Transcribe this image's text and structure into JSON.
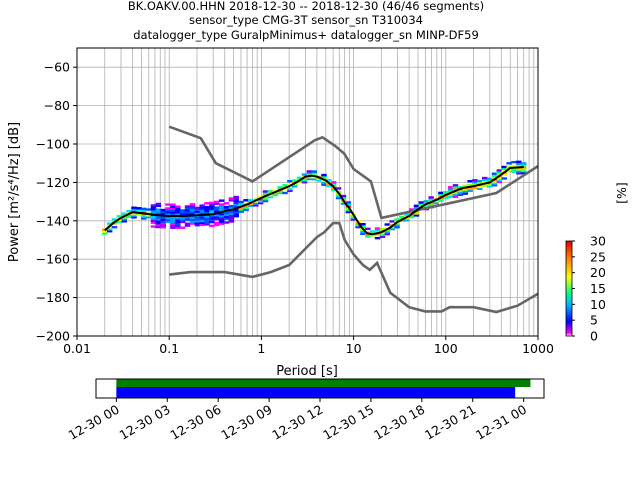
{
  "chart_data": {
    "type": "heatmap",
    "title_lines": [
      "BK.OAKV.00.HHN   2018-12-30 -- 2018-12-30  (46/46 segments)",
      "sensor_type CMG-3T sensor_sn T310034",
      "datalogger_type GuralpMinimus+ datalogger_sn MINP-DF59"
    ],
    "xlabel": "Period [s]",
    "ylabel": "Power [m²/s⁴/Hz] [dB]",
    "x_scale": "log",
    "xlim": [
      0.01,
      1000
    ],
    "ylim": [
      -200,
      -50
    ],
    "x_ticks": [
      {
        "value": 0.01,
        "label": "0.01"
      },
      {
        "value": 0.1,
        "label": "0.1"
      },
      {
        "value": 1,
        "label": "1"
      },
      {
        "value": 10,
        "label": "10"
      },
      {
        "value": 100,
        "label": "100"
      },
      {
        "value": 1000,
        "label": "1000"
      }
    ],
    "y_ticks": [
      {
        "value": -60,
        "label": "−60"
      },
      {
        "value": -80,
        "label": "−80"
      },
      {
        "value": -100,
        "label": "−100"
      },
      {
        "value": -120,
        "label": "−120"
      },
      {
        "value": -140,
        "label": "−140"
      },
      {
        "value": -160,
        "label": "−160"
      },
      {
        "value": -180,
        "label": "−180"
      },
      {
        "value": -200,
        "label": "−200"
      }
    ],
    "grid": true,
    "high_noise_model": [
      [
        0.1,
        -91
      ],
      [
        0.22,
        -97
      ],
      [
        0.32,
        -110
      ],
      [
        0.8,
        -119.5
      ],
      [
        3.8,
        -98
      ],
      [
        4.6,
        -96.5
      ],
      [
        6.3,
        -101
      ],
      [
        7.9,
        -105
      ],
      [
        10,
        -113
      ],
      [
        15.4,
        -119.5
      ],
      [
        20,
        -138.5
      ],
      [
        354,
        -125.5
      ],
      [
        1000,
        -111.5
      ]
    ],
    "low_noise_model": [
      [
        0.1,
        -168
      ],
      [
        0.17,
        -166.7
      ],
      [
        0.4,
        -166.7
      ],
      [
        0.8,
        -169.2
      ],
      [
        1.26,
        -166.7
      ],
      [
        2,
        -163
      ],
      [
        4,
        -148.5
      ],
      [
        4.8,
        -146
      ],
      [
        6,
        -141.2
      ],
      [
        7,
        -141.2
      ],
      [
        8,
        -150
      ],
      [
        10,
        -157.5
      ],
      [
        12.6,
        -163
      ],
      [
        15,
        -165.5
      ],
      [
        18,
        -162
      ],
      [
        25,
        -177.5
      ],
      [
        40,
        -185
      ],
      [
        60,
        -187.2
      ],
      [
        90,
        -187.2
      ],
      [
        110,
        -185
      ],
      [
        200,
        -185
      ],
      [
        354,
        -187.5
      ],
      [
        600,
        -184.2
      ],
      [
        1000,
        -178
      ]
    ],
    "mode_line": [
      [
        0.02,
        -145
      ],
      [
        0.025,
        -141
      ],
      [
        0.03,
        -138.5
      ],
      [
        0.04,
        -135.5
      ],
      [
        0.05,
        -136
      ],
      [
        0.07,
        -137
      ],
      [
        0.1,
        -137.5
      ],
      [
        0.15,
        -137.5
      ],
      [
        0.2,
        -137.2
      ],
      [
        0.3,
        -136.5
      ],
      [
        0.4,
        -135
      ],
      [
        0.5,
        -134
      ],
      [
        0.7,
        -131.5
      ],
      [
        1,
        -128
      ],
      [
        1.5,
        -124.5
      ],
      [
        2,
        -122
      ],
      [
        2.5,
        -119.5
      ],
      [
        3,
        -117
      ],
      [
        3.5,
        -116.5
      ],
      [
        4,
        -117
      ],
      [
        5,
        -119
      ],
      [
        6,
        -122
      ],
      [
        7,
        -126
      ],
      [
        8,
        -130.5
      ],
      [
        9,
        -133.5
      ],
      [
        10,
        -137
      ],
      [
        12,
        -143
      ],
      [
        14,
        -146.5
      ],
      [
        16,
        -147
      ],
      [
        20,
        -146
      ],
      [
        25,
        -143.5
      ],
      [
        30,
        -140.5
      ],
      [
        40,
        -137.5
      ],
      [
        50,
        -134
      ],
      [
        60,
        -131.5
      ],
      [
        80,
        -129
      ],
      [
        100,
        -126.5
      ],
      [
        150,
        -123
      ],
      [
        200,
        -122
      ],
      [
        300,
        -120
      ],
      [
        400,
        -116
      ],
      [
        500,
        -112.5
      ],
      [
        700,
        -112
      ]
    ],
    "colorbar": {
      "label": "[%]",
      "min": 0,
      "max": 30,
      "ticks": [
        {
          "value": 0,
          "label": "0"
        },
        {
          "value": 5,
          "label": "5"
        },
        {
          "value": 10,
          "label": "10"
        },
        {
          "value": 15,
          "label": "15"
        },
        {
          "value": 20,
          "label": "20"
        },
        {
          "value": 25,
          "label": "25"
        },
        {
          "value": 30,
          "label": "30"
        }
      ]
    },
    "coverage": {
      "tick_labels": [
        "12-30 00",
        "12-30 03",
        "12-30 06",
        "12-30 09",
        "12-30 12",
        "12-30 15",
        "12-30 18",
        "12-30 21",
        "12-31 00"
      ],
      "green_bar": [
        0,
        24.4
      ],
      "blue_bar": [
        0,
        23.5
      ],
      "xlim": [
        -1.2,
        25.2
      ],
      "colors": {
        "green": "#008000",
        "blue": "#0000ff"
      }
    }
  }
}
